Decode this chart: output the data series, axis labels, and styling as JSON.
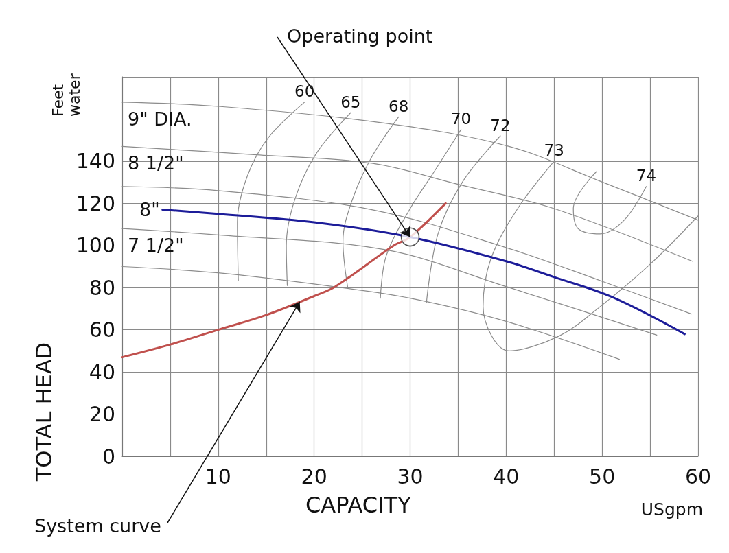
{
  "chart_data": {
    "type": "line",
    "xlabel": "CAPACITY",
    "ylabel": "TOTAL HEAD",
    "xlim": [
      0,
      60
    ],
    "xticks": [
      {
        "value": 0,
        "label": null
      },
      {
        "value": 5,
        "label": null
      },
      10,
      {
        "value": 15,
        "label": null
      },
      20,
      {
        "value": 25,
        "label": null
      },
      30,
      {
        "value": 35,
        "label": null
      },
      40,
      {
        "value": 45,
        "label": null
      },
      50,
      {
        "value": 55,
        "label": null
      },
      60
    ],
    "ylim": [
      0,
      180
    ],
    "yticks": [
      0,
      20,
      40,
      60,
      80,
      100,
      120,
      140,
      {
        "value": 160,
        "label": null
      },
      {
        "value": 180,
        "label": null
      }
    ],
    "grid": true,
    "legend": false,
    "marker": "none",
    "series": [
      {
        "name": "9\" DIA.",
        "color": "#8c8c8c",
        "x": [
          0,
          10,
          27.4,
          40.3,
          49.8,
          60
        ],
        "values": [
          168,
          166,
          158,
          147,
          130.5,
          112
        ]
      },
      {
        "name": "8 1/2\"",
        "color": "#8c8c8c",
        "x": [
          0,
          14,
          26,
          35,
          45,
          59.4
        ],
        "values": [
          147,
          143,
          139,
          129,
          117.5,
          92.5
        ]
      },
      {
        "color": "#8c8c8c",
        "x": [
          0,
          10,
          26,
          40,
          50,
          59.3
        ],
        "values": [
          128,
          126,
          117,
          99,
          83,
          67.5
        ]
      },
      {
        "name": "7 1/2\"",
        "color": "#8c8c8c",
        "x": [
          0,
          10,
          27.4,
          40,
          55.7
        ],
        "values": [
          108,
          105,
          98,
          80.5,
          57.5
        ]
      },
      {
        "color": "#8c8c8c",
        "x": [
          0,
          10,
          22,
          30,
          40,
          51.8
        ],
        "values": [
          90,
          87,
          80.5,
          75,
          64,
          46
        ]
      },
      {
        "name": "60",
        "color": "#8c8c8c",
        "x": [
          19,
          15.2,
          13,
          12,
          12.1
        ],
        "values": [
          168,
          151,
          132.5,
          111,
          83.4
        ]
      },
      {
        "name": "65",
        "color": "#8c8c8c",
        "x": [
          23.8,
          20.2,
          18,
          17.1,
          17.2
        ],
        "values": [
          163,
          143.5,
          122,
          100,
          81
        ]
      },
      {
        "name": "68",
        "color": "#8c8c8c",
        "x": [
          28.8,
          26,
          24,
          23,
          23.5
        ],
        "values": [
          161,
          142,
          122,
          102,
          80
        ]
      },
      {
        "name": "70",
        "color": "#8c8c8c",
        "x": [
          35.3,
          32.5,
          30,
          27.5,
          26.9
        ],
        "values": [
          155,
          135,
          117.5,
          95,
          75
        ]
      },
      {
        "name": "72",
        "color": "#8c8c8c",
        "x": [
          39.4,
          35.5,
          32.9,
          31.7
        ],
        "values": [
          152,
          130.5,
          105.5,
          73
        ]
      },
      {
        "name": "73",
        "color": "#8c8c8c",
        "x": [
          45,
          41.2,
          38.4,
          37.6,
          40.3,
          45.5,
          49.8,
          55.1,
          60
        ],
        "values": [
          140,
          117.5,
          93.5,
          71,
          50,
          57,
          71,
          91.5,
          114
        ]
      },
      {
        "name": "74",
        "color": "#8c8c8c",
        "x": [
          54.6,
          52.3,
          49.8,
          47.5,
          47,
          49.4
        ],
        "values": [
          128,
          112,
          105.5,
          108,
          117.5,
          135
        ]
      },
      {
        "color": "#c0504d",
        "x": [
          0,
          5,
          10,
          15,
          20,
          22.2,
          28.3,
          30,
          33.7
        ],
        "values": [
          47,
          53,
          60,
          67,
          76,
          80.5,
          100,
          104,
          120
        ]
      },
      {
        "name": "8\"",
        "color": "#1c1c99",
        "x": [
          4.2,
          10,
          20,
          30,
          40,
          45,
          51,
          58.6
        ],
        "values": [
          117,
          115,
          111,
          104,
          92.5,
          85,
          75.6,
          58
        ]
      },
      {
        "type": "scatter",
        "marker": "circle",
        "color": "#ffffff",
        "x": [
          30
        ],
        "values": [
          104
        ]
      }
    ],
    "annotations": [
      {
        "text": "Operating point",
        "x": 30,
        "y": 104
      },
      {
        "text": "System curve",
        "x": 18.5,
        "y": 73.3
      },
      "Feet\nwater",
      "USgpm"
    ]
  }
}
